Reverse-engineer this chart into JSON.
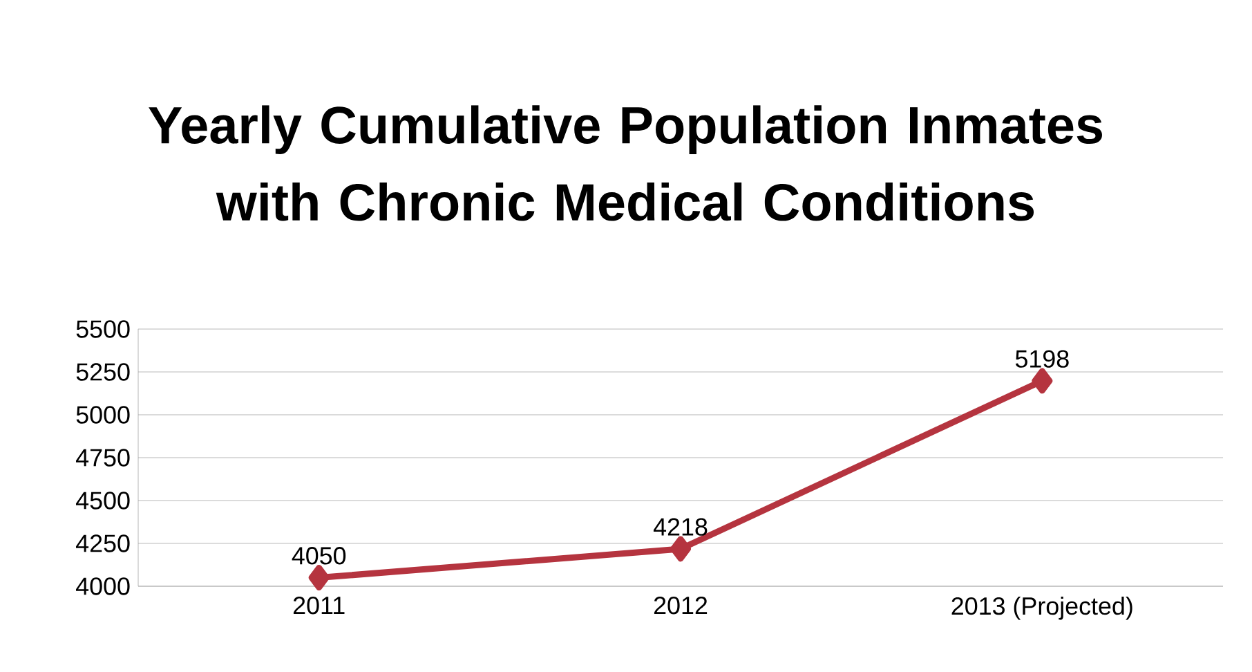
{
  "chart_data": {
    "type": "line",
    "title": "Yearly Cumulative Population Inmates with Chronic Medical Conditions",
    "categories": [
      "2011",
      "2012",
      "2013 (Projected)"
    ],
    "values": [
      4050,
      4218,
      5198
    ],
    "color": "#b5343f",
    "ylim": [
      4000,
      5500
    ],
    "yticks": [
      4000,
      4250,
      4500,
      4750,
      5000,
      5250,
      5500
    ],
    "grid": "y",
    "marker": "diamond",
    "line_style": "solid",
    "data_labels": true
  }
}
